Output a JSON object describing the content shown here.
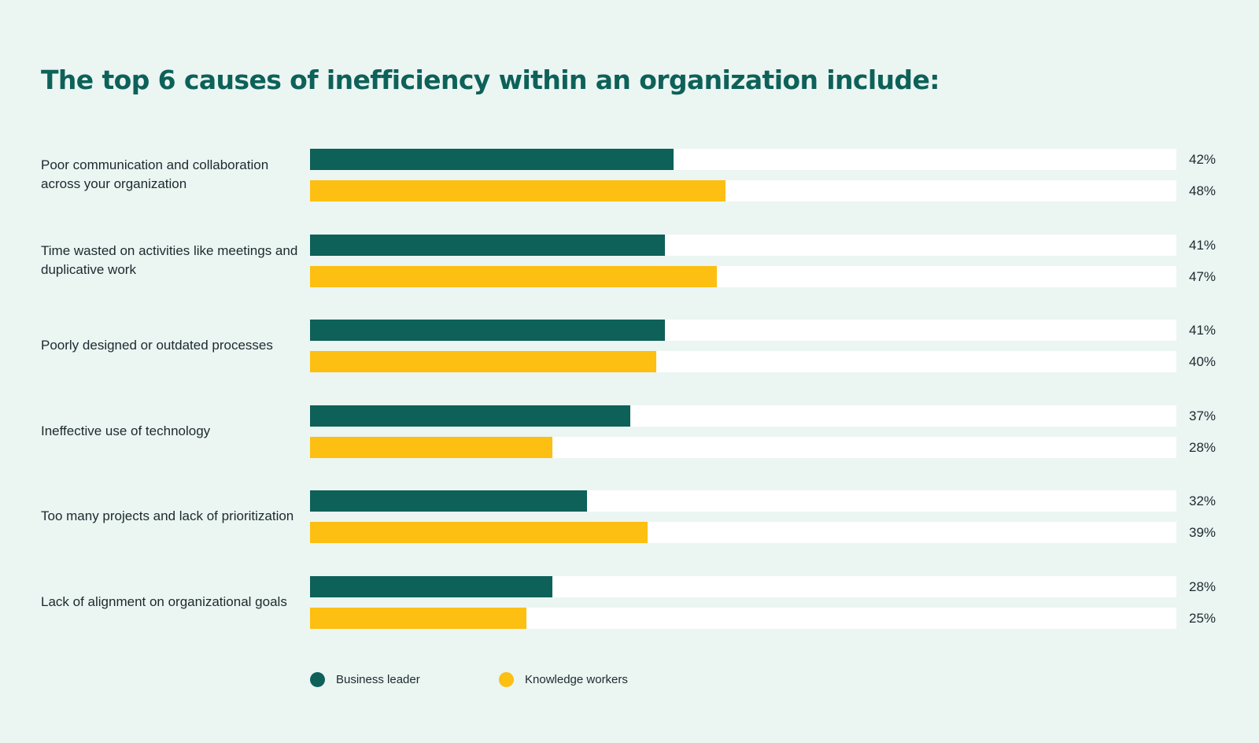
{
  "chart_data": {
    "type": "bar",
    "orientation": "horizontal",
    "title": "The top 6 causes of inefficiency within an organization include:",
    "categories": [
      "Poor communication and collaboration across your organization",
      "Time wasted on activities like meetings and duplicative work",
      "Poorly designed or  outdated processes",
      "Ineffective use of technology",
      "Too many projects and lack of prioritization",
      "Lack  of alignment on organizational goals"
    ],
    "series": [
      {
        "name": "Business leader",
        "color": "#0d6159",
        "values": [
          42,
          41,
          41,
          37,
          32,
          28
        ],
        "labels": [
          "42%",
          "41%",
          "41%",
          "37%",
          "32%",
          "28%"
        ]
      },
      {
        "name": "Knowledge workers",
        "color": "#fcbf12",
        "values": [
          48,
          47,
          40,
          28,
          39,
          25
        ],
        "labels": [
          "48%",
          "47%",
          "40%",
          "28%",
          "39%",
          "25%"
        ]
      }
    ],
    "xlim": [
      0,
      100
    ],
    "value_suffix": "%",
    "grid": false,
    "legend_position": "bottom-left"
  },
  "colors": {
    "background": "#ebf5f2",
    "track": "#ffffff",
    "title": "#0d6159",
    "text": "#1c2a2e"
  }
}
